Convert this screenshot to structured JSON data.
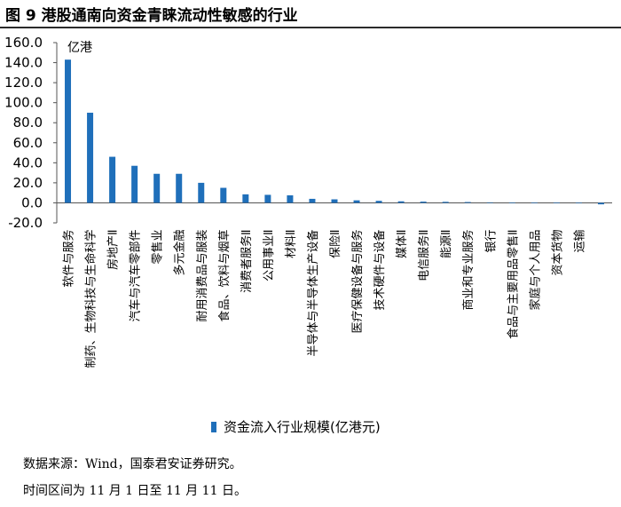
{
  "figure": {
    "title": "图 9 港股通南向资金青睐流动性敏感的行业",
    "source_note": "数据来源：Wind，国泰君安证券研究。",
    "period_note": "时间区间为 11 月 1 日至 11 月 11 日。"
  },
  "chart_data": {
    "type": "bar",
    "unit_label": "亿港",
    "series": [
      {
        "name": "资金流入行业规模(亿港元)",
        "color": "#1f6fba",
        "values": [
          143,
          90,
          46,
          37,
          29,
          29,
          20,
          15,
          8.5,
          8,
          7.5,
          4,
          3.5,
          2.5,
          2,
          1.5,
          1.2,
          1,
          0.8,
          0.5,
          0.4,
          0.3,
          0.2,
          -0.5,
          -1.5
        ]
      }
    ],
    "categories": [
      "软件与服务",
      "制药、生物科技与生命科学",
      "房地产Ⅱ",
      "汽车与汽车零部件",
      "零售业",
      "多元金融",
      "耐用消费品与服装",
      "食品、饮料与烟草",
      "消费者服务Ⅱ",
      "公用事业Ⅱ",
      "材料Ⅱ",
      "半导体与半导体生产设备",
      "保险Ⅱ",
      "医疗保健设备与服务",
      "技术硬件与设备",
      "媒体Ⅱ",
      "电信服务Ⅱ",
      "能源Ⅱ",
      "商业和专业服务",
      "银行",
      "食品与主要用品零售Ⅱ",
      "家庭与个人用品",
      "资本货物",
      "运输",
      ""
    ],
    "ylim": [
      -20,
      160
    ],
    "yticks": [
      "-20.0",
      "0.0",
      "20.0",
      "40.0",
      "60.0",
      "80.0",
      "100.0",
      "120.0",
      "140.0",
      "160.0"
    ],
    "legend_position": "bottom-center",
    "grid": false
  }
}
